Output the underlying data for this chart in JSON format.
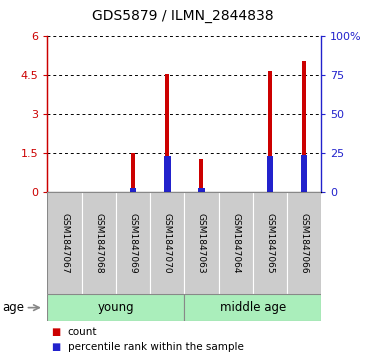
{
  "title": "GDS5879 / ILMN_2844838",
  "samples": [
    "GSM1847067",
    "GSM1847068",
    "GSM1847069",
    "GSM1847070",
    "GSM1847063",
    "GSM1847064",
    "GSM1847065",
    "GSM1847066"
  ],
  "count_values": [
    0.0,
    0.0,
    1.5,
    4.55,
    1.3,
    0.0,
    4.65,
    5.05
  ],
  "percentile_values": [
    0.0,
    0.0,
    0.18,
    1.4,
    0.18,
    0.0,
    1.4,
    1.42
  ],
  "ylim_left": [
    0,
    6
  ],
  "yticks_left": [
    0,
    1.5,
    3,
    4.5,
    6
  ],
  "ytick_labels_left": [
    "0",
    "1.5",
    "3",
    "4.5",
    "6"
  ],
  "yticks_right_vals": [
    0,
    1.5,
    3,
    4.5,
    6
  ],
  "ytick_labels_right": [
    "0",
    "25",
    "50",
    "75",
    "100%"
  ],
  "groups": [
    {
      "label": "young",
      "start": 0,
      "end": 4
    },
    {
      "label": "middle age",
      "start": 4,
      "end": 8
    }
  ],
  "age_label": "age",
  "red_color": "#cc0000",
  "blue_color": "#2222cc",
  "gray_bg": "#cccccc",
  "green_bg": "#aaeebb",
  "legend_count": "count",
  "legend_percentile": "percentile rank within the sample"
}
